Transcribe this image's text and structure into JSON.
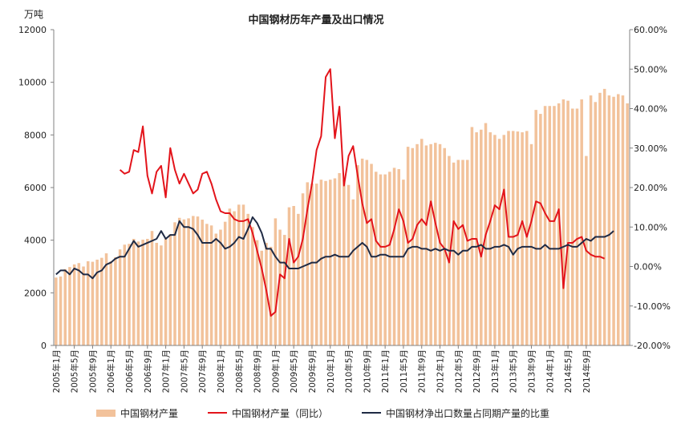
{
  "chart_data": {
    "type": "bar",
    "title": "中国钢材历年产量及出口情况",
    "left_unit_label": "万吨",
    "left_axis": {
      "min": 0,
      "max": 12000,
      "step": 2000,
      "ticks": [
        "0",
        "2000",
        "4000",
        "6000",
        "8000",
        "10000",
        "12000"
      ]
    },
    "right_axis": {
      "min": -20,
      "max": 60,
      "step": 10,
      "ticks": [
        "-20.00%",
        "-10.00%",
        "0.00%",
        "10.00%",
        "20.00%",
        "30.00%",
        "40.00%",
        "50.00%",
        "60.00%"
      ]
    },
    "x_tick_labels": [
      "2005年1月",
      "2005年5月",
      "2005年9月",
      "2006年1月",
      "2006年5月",
      "2006年9月",
      "2007年1月",
      "2007年5月",
      "2007年9月",
      "2008年1月",
      "2008年5月",
      "2008年9月",
      "2009年1月",
      "2009年5月",
      "2009年9月",
      "2010年1月",
      "2010年5月",
      "2010年9月",
      "2011年1月",
      "2011年5月",
      "2011年9月",
      "2012年1月",
      "2012年5月",
      "2012年9月",
      "2013年1月",
      "2013年5月",
      "2013年9月",
      "2014年1月",
      "2014年5月",
      "2014年9月"
    ],
    "colors": {
      "bar": "#f2c29b",
      "yoy": "#e3141b",
      "export": "#1f2a44"
    },
    "legend_position": "bottom",
    "series": [
      {
        "name": "中国钢材产量",
        "kind": "bar",
        "axis": "left",
        "values": [
          2580,
          2620,
          2900,
          2980,
          3080,
          3130,
          3000,
          3200,
          3180,
          3260,
          3330,
          3500,
          3200,
          3350,
          3650,
          3830,
          3860,
          4050,
          3950,
          4020,
          4050,
          4350,
          3900,
          3800,
          4050,
          4230,
          4680,
          4850,
          4790,
          4830,
          4920,
          4900,
          4780,
          4620,
          4560,
          4250,
          4400,
          4700,
          5200,
          5100,
          5350,
          5350,
          5000,
          4500,
          4000,
          3600,
          3900,
          3750,
          4830,
          4400,
          4200,
          5250,
          5300,
          5000,
          5780,
          6200,
          6150,
          6150,
          6300,
          6250,
          6300,
          6350,
          6550,
          6300,
          6100,
          5550,
          6850,
          7100,
          7050,
          6900,
          6600,
          6500,
          6500,
          6600,
          6750,
          6700,
          6300,
          7550,
          7500,
          7650,
          7850,
          7600,
          7650,
          7700,
          7650,
          7500,
          7200,
          6950,
          7050,
          7050,
          7050,
          8300,
          8100,
          8200,
          8450,
          8100,
          8000,
          7850,
          8000,
          8150,
          8150,
          8130,
          8100,
          8150,
          7650,
          8950,
          8800,
          9100,
          9100,
          9100,
          9200,
          9350,
          9300,
          9000,
          9000,
          9350,
          7200,
          9500,
          9250,
          9600,
          9750,
          9500,
          9450,
          9550,
          9500,
          9200
        ]
      },
      {
        "name": "中国钢材产量（同比）",
        "kind": "line",
        "axis": "right",
        "start_index": 14,
        "values": [
          24.5,
          23.5,
          24,
          29.5,
          29,
          35.5,
          23,
          18.5,
          24,
          25.5,
          17.5,
          30,
          24.5,
          21,
          23.5,
          21,
          18.5,
          19.5,
          23.5,
          24,
          21,
          17,
          14,
          13.5,
          13.5,
          12,
          11.5,
          11.5,
          12,
          8.5,
          4,
          -0.5,
          -6,
          -12.5,
          -11.5,
          -2,
          -3,
          7,
          1,
          2.5,
          7,
          14.5,
          21,
          29.5,
          33,
          48,
          50,
          32.5,
          40.5,
          20.5,
          28,
          30.5,
          23,
          16,
          11,
          12,
          6.5,
          5,
          5,
          5.5,
          9.5,
          14.5,
          11.5,
          6,
          7,
          10.5,
          12,
          10.5,
          16.5,
          11,
          6,
          4.5,
          1,
          11.5,
          9.5,
          10.5,
          6.5,
          7,
          7,
          2.5,
          8,
          11.5,
          15.5,
          14.5,
          19.5,
          7.5,
          7.5,
          8,
          11.5,
          7.5,
          11.5,
          16.5,
          16,
          13.5,
          11.5,
          11.5,
          14.5,
          -5.5,
          6,
          6,
          7,
          7.5,
          4,
          3,
          2.5,
          2.5,
          2
        ]
      },
      {
        "name": "中国钢材净出口数量占同期产量的比重",
        "kind": "line",
        "axis": "right",
        "start_index": 0,
        "values": [
          -2,
          -1,
          -1,
          -2,
          -0.5,
          -1,
          -2,
          -2,
          -3,
          -1.5,
          -1,
          0.5,
          1,
          2,
          2.5,
          2.5,
          4.5,
          6.5,
          5,
          5.5,
          6,
          6.5,
          7,
          9,
          7,
          8,
          8,
          11.5,
          10,
          10,
          9.5,
          8,
          6,
          6,
          6,
          7,
          6,
          4.5,
          5,
          6,
          7.5,
          7,
          9.5,
          12.5,
          11,
          8.5,
          4.5,
          4.5,
          2.5,
          1,
          1,
          -0.5,
          -0.5,
          -0.5,
          0,
          0.5,
          1,
          1,
          2,
          2.5,
          2.5,
          3,
          2.5,
          2.5,
          2.5,
          4,
          5,
          6,
          5,
          2.5,
          2.5,
          3,
          3,
          2.5,
          2.5,
          2.5,
          2.5,
          4.5,
          5,
          5,
          4.5,
          4.5,
          4,
          4.5,
          4,
          4.5,
          4,
          4,
          3,
          4,
          4,
          5,
          5,
          5.5,
          4.5,
          4.5,
          5,
          5,
          5.5,
          5,
          3,
          4.5,
          5,
          5,
          5,
          4.5,
          4.5,
          5.5,
          4.5,
          4.5,
          4.5,
          5,
          5.5,
          5,
          5,
          6,
          7,
          6.5,
          7.5,
          7.5,
          7.5,
          8,
          9
        ]
      }
    ]
  }
}
